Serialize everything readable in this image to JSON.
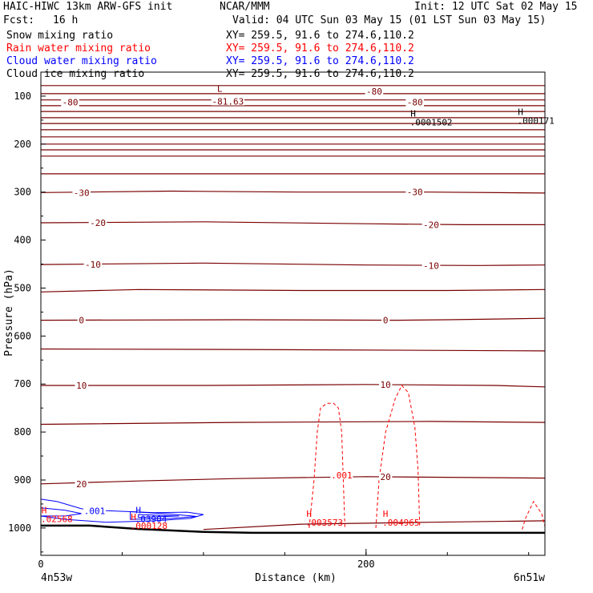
{
  "header": {
    "model": "HAIC-HIWC 13km ARW-GFS init",
    "center": "NCAR/MMM",
    "init": "Init: 12 UTC Sat 02 May 15",
    "fcst_label": "Fcst:",
    "fcst_value": "16 h",
    "valid": "Valid: 04 UTC Sun 03 May 15 (01 LST Sun 03 May 15)"
  },
  "legend": [
    {
      "label": "Snow mixing ratio",
      "xy": "XY= 259.5, 91.6 to 274.6,110.2",
      "color": "#000000"
    },
    {
      "label": "Rain water mixing ratio",
      "xy": "XY= 259.5, 91.6 to 274.6,110.2",
      "color": "#ff0000"
    },
    {
      "label": "Cloud water mixing ratio",
      "xy": "XY= 259.5, 91.6 to 274.6,110.2",
      "color": "#0000ff"
    },
    {
      "label": "Cloud ice mixing ratio",
      "xy": "XY= 259.5, 91.6 to 274.6,110.2",
      "color": "#000000"
    }
  ],
  "chart_data": {
    "type": "line",
    "xlabel": "Distance (km)",
    "ylabel": "Pressure (hPa)",
    "xlim": [
      0,
      310
    ],
    "ylim": [
      1057,
      50
    ],
    "x_ticks": [
      0,
      200
    ],
    "y_ticks": [
      100,
      200,
      300,
      400,
      500,
      600,
      700,
      800,
      900,
      1000
    ],
    "endpoints": {
      "left": "4n53w",
      "right": "6n51w"
    },
    "colors": {
      "temperature": "#7a0000",
      "rain": "#ff0000",
      "cloud_water": "#0000ff",
      "terrain": "#000000"
    },
    "temperature_labels": [
      {
        "text": "-80",
        "x": 18,
        "p": 113
      },
      {
        "text": "-81.63",
        "x": 115,
        "p": 111
      },
      {
        "text": "-80",
        "x": 205,
        "p": 90
      },
      {
        "text": "-80",
        "x": 230,
        "p": 113
      },
      {
        "text": "-30",
        "x": 25,
        "p": 301
      },
      {
        "text": "-30",
        "x": 230,
        "p": 300
      },
      {
        "text": "-20",
        "x": 35,
        "p": 364
      },
      {
        "text": "-20",
        "x": 240,
        "p": 368
      },
      {
        "text": "-10",
        "x": 32,
        "p": 451
      },
      {
        "text": "-10",
        "x": 240,
        "p": 453
      },
      {
        "text": "0",
        "x": 25,
        "p": 567
      },
      {
        "text": "0",
        "x": 212,
        "p": 567
      },
      {
        "text": "10",
        "x": 25,
        "p": 703
      },
      {
        "text": "10",
        "x": 212,
        "p": 701
      },
      {
        "text": "20",
        "x": 25,
        "p": 908
      },
      {
        "text": "20",
        "x": 212,
        "p": 893
      }
    ],
    "temperature_isotherms": [
      {
        "points": [
          [
            0,
            78
          ],
          [
            310,
            78
          ]
        ]
      },
      {
        "points": [
          [
            0,
            95
          ],
          [
            310,
            95
          ]
        ]
      },
      {
        "points": [
          [
            0,
            108
          ],
          [
            310,
            108
          ]
        ]
      },
      {
        "points": [
          [
            0,
            120
          ],
          [
            310,
            120
          ]
        ]
      },
      {
        "points": [
          [
            0,
            132
          ],
          [
            310,
            132
          ]
        ]
      },
      {
        "points": [
          [
            0,
            145
          ],
          [
            310,
            145
          ]
        ]
      },
      {
        "points": [
          [
            0,
            157
          ],
          [
            310,
            157
          ]
        ]
      },
      {
        "points": [
          [
            0,
            170
          ],
          [
            310,
            170
          ]
        ]
      },
      {
        "points": [
          [
            0,
            185
          ],
          [
            310,
            185
          ]
        ]
      },
      {
        "points": [
          [
            0,
            200
          ],
          [
            310,
            200
          ]
        ]
      },
      {
        "points": [
          [
            0,
            212
          ],
          [
            310,
            212
          ]
        ]
      },
      {
        "points": [
          [
            0,
            225
          ],
          [
            310,
            225
          ]
        ]
      },
      {
        "points": [
          [
            0,
            262
          ],
          [
            310,
            262
          ]
        ]
      },
      {
        "points": [
          [
            0,
            301
          ],
          [
            80,
            298
          ],
          [
            160,
            300
          ],
          [
            240,
            300
          ],
          [
            310,
            302
          ]
        ]
      },
      {
        "points": [
          [
            0,
            364
          ],
          [
            100,
            362
          ],
          [
            200,
            366
          ],
          [
            260,
            368
          ],
          [
            310,
            368
          ]
        ]
      },
      {
        "points": [
          [
            0,
            451
          ],
          [
            100,
            448
          ],
          [
            200,
            452
          ],
          [
            270,
            453
          ],
          [
            310,
            452
          ]
        ]
      },
      {
        "points": [
          [
            0,
            508
          ],
          [
            60,
            503
          ],
          [
            160,
            505
          ],
          [
            250,
            505
          ],
          [
            310,
            503
          ]
        ]
      },
      {
        "points": [
          [
            0,
            567
          ],
          [
            120,
            566
          ],
          [
            220,
            567
          ],
          [
            250,
            566
          ],
          [
            310,
            563
          ]
        ]
      },
      {
        "points": [
          [
            0,
            627
          ],
          [
            120,
            628
          ],
          [
            250,
            630
          ],
          [
            310,
            631
          ]
        ]
      },
      {
        "points": [
          [
            0,
            703
          ],
          [
            100,
            703
          ],
          [
            200,
            701
          ],
          [
            280,
            703
          ],
          [
            310,
            706
          ]
        ]
      },
      {
        "points": [
          [
            0,
            784
          ],
          [
            120,
            780
          ],
          [
            240,
            778
          ],
          [
            310,
            780
          ]
        ]
      },
      {
        "points": [
          [
            0,
            908
          ],
          [
            60,
            902
          ],
          [
            120,
            897
          ],
          [
            200,
            893
          ],
          [
            310,
            896
          ]
        ]
      },
      {
        "points": [
          [
            100,
            1003
          ],
          [
            160,
            992
          ],
          [
            240,
            988
          ],
          [
            310,
            985
          ]
        ]
      }
    ],
    "rain_contours": [
      {
        "label": ".001",
        "points": [
          [
            165,
            1000
          ],
          [
            168,
            900
          ],
          [
            170,
            800
          ],
          [
            172,
            750
          ],
          [
            176,
            740
          ],
          [
            180,
            740
          ],
          [
            183,
            750
          ],
          [
            185,
            800
          ],
          [
            186,
            900
          ],
          [
            187,
            1000
          ]
        ]
      },
      {
        "label": "",
        "points": [
          [
            206,
            1000
          ],
          [
            208,
            900
          ],
          [
            212,
            800
          ],
          [
            218,
            730
          ],
          [
            222,
            703
          ],
          [
            226,
            718
          ],
          [
            230,
            790
          ],
          [
            232,
            880
          ],
          [
            233,
            1000
          ]
        ]
      },
      {
        "label": "",
        "points": [
          [
            296,
            1003
          ],
          [
            298,
            980
          ],
          [
            303,
            945
          ],
          [
            308,
            970
          ],
          [
            310,
            997
          ]
        ]
      }
    ],
    "rain_labels": [
      {
        "text": ".001",
        "x": 185,
        "p": 890
      }
    ],
    "cloud_water_contours": [
      {
        "points": [
          [
            0,
            940
          ],
          [
            10,
            945
          ],
          [
            25,
            960
          ],
          [
            40,
            964
          ],
          [
            70,
            968
          ],
          [
            90,
            967
          ],
          [
            100,
            972
          ],
          [
            92,
            980
          ],
          [
            70,
            985
          ],
          [
            40,
            988
          ],
          [
            15,
            982
          ],
          [
            0,
            975
          ]
        ]
      },
      {
        "points": [
          [
            55,
            966
          ],
          [
            80,
            971
          ],
          [
            96,
            976
          ],
          [
            80,
            980
          ],
          [
            55,
            982
          ]
        ]
      },
      {
        "points": [
          [
            60,
            972
          ],
          [
            85,
            975
          ],
          [
            60,
            978
          ]
        ]
      },
      {
        "points": [
          [
            0,
            958
          ],
          [
            15,
            963
          ],
          [
            25,
            970
          ],
          [
            15,
            975
          ],
          [
            0,
            975
          ]
        ]
      }
    ],
    "cloud_water_labels": [
      {
        "text": ".001",
        "x": 33,
        "p": 964
      }
    ],
    "extremes": [
      {
        "type": "L",
        "value": "",
        "x": 108,
        "p": 94,
        "color": "#7a0000"
      },
      {
        "type": "H",
        "value": ".0001502",
        "x": 227,
        "p": 146,
        "color": "#000000"
      },
      {
        "type": "H",
        "value": ".000171",
        "x": 293,
        "p": 143,
        "color": "#000000"
      },
      {
        "type": "H",
        "value": ".02568",
        "x": 0,
        "p": 973,
        "color": "#ff0000"
      },
      {
        "type": "H",
        "value": ".03904",
        "x": 58,
        "p": 973,
        "color": "#0000ff"
      },
      {
        "type": "H",
        "value": ".000128",
        "x": 55,
        "p": 987,
        "color": "#ff0000"
      },
      {
        "type": "H",
        "value": ".003573",
        "x": 163,
        "p": 980,
        "color": "#ff0000"
      },
      {
        "type": "H",
        "value": ".004965",
        "x": 210,
        "p": 980,
        "color": "#ff0000"
      }
    ],
    "terrain": [
      [
        0,
        995
      ],
      [
        30,
        995
      ],
      [
        60,
        1002
      ],
      [
        100,
        1008
      ],
      [
        130,
        1010
      ],
      [
        200,
        1010
      ],
      [
        260,
        1010
      ],
      [
        310,
        1010
      ]
    ]
  }
}
